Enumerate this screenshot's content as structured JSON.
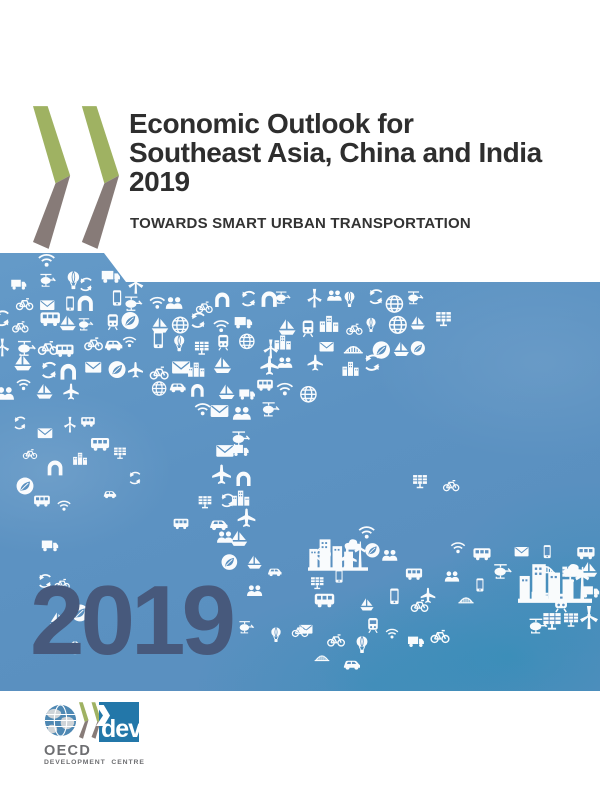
{
  "cover": {
    "title_line1": "Economic Outlook for",
    "title_line2": "Southeast Asia, China and India",
    "title_line3": "2019",
    "subtitle": "TOWARDS SMART URBAN TRANSPORTATION",
    "year_overlay": "2019"
  },
  "footer": {
    "oecd_wordmark": "OECD",
    "dev_wordmark": "dev",
    "centre_label": "DEVELOPMENT  CENTRE"
  },
  "colors": {
    "panel_blue": "#5b91c1",
    "panel_teal_accent": "#188cb2",
    "year_navy": "#47597c",
    "chevron_green": "#9fb262",
    "chevron_taupe": "#877b78",
    "dev_box_blue": "#2377a9",
    "title_ink": "#2e2e2e",
    "logo_gray": "#6d6e71"
  },
  "map": {
    "description": "Map of Southeast Asia, China and India formed from white transport and smart-city pictograms on blue",
    "icon_vocabulary": [
      "bus-icon",
      "train-icon",
      "car-icon",
      "bicycle-icon",
      "building-icon",
      "wifi-icon",
      "globe-icon",
      "leaf-icon",
      "envelope-icon",
      "people-icon",
      "recycle-icon",
      "solar-panel-icon",
      "wind-turbine-icon",
      "plane-icon",
      "sailboat-icon",
      "helicopter-icon",
      "hot-air-balloon-icon",
      "truck-icon",
      "bridge-icon",
      "tunnel-icon",
      "phone-icon",
      "city-skyline-icon"
    ]
  }
}
